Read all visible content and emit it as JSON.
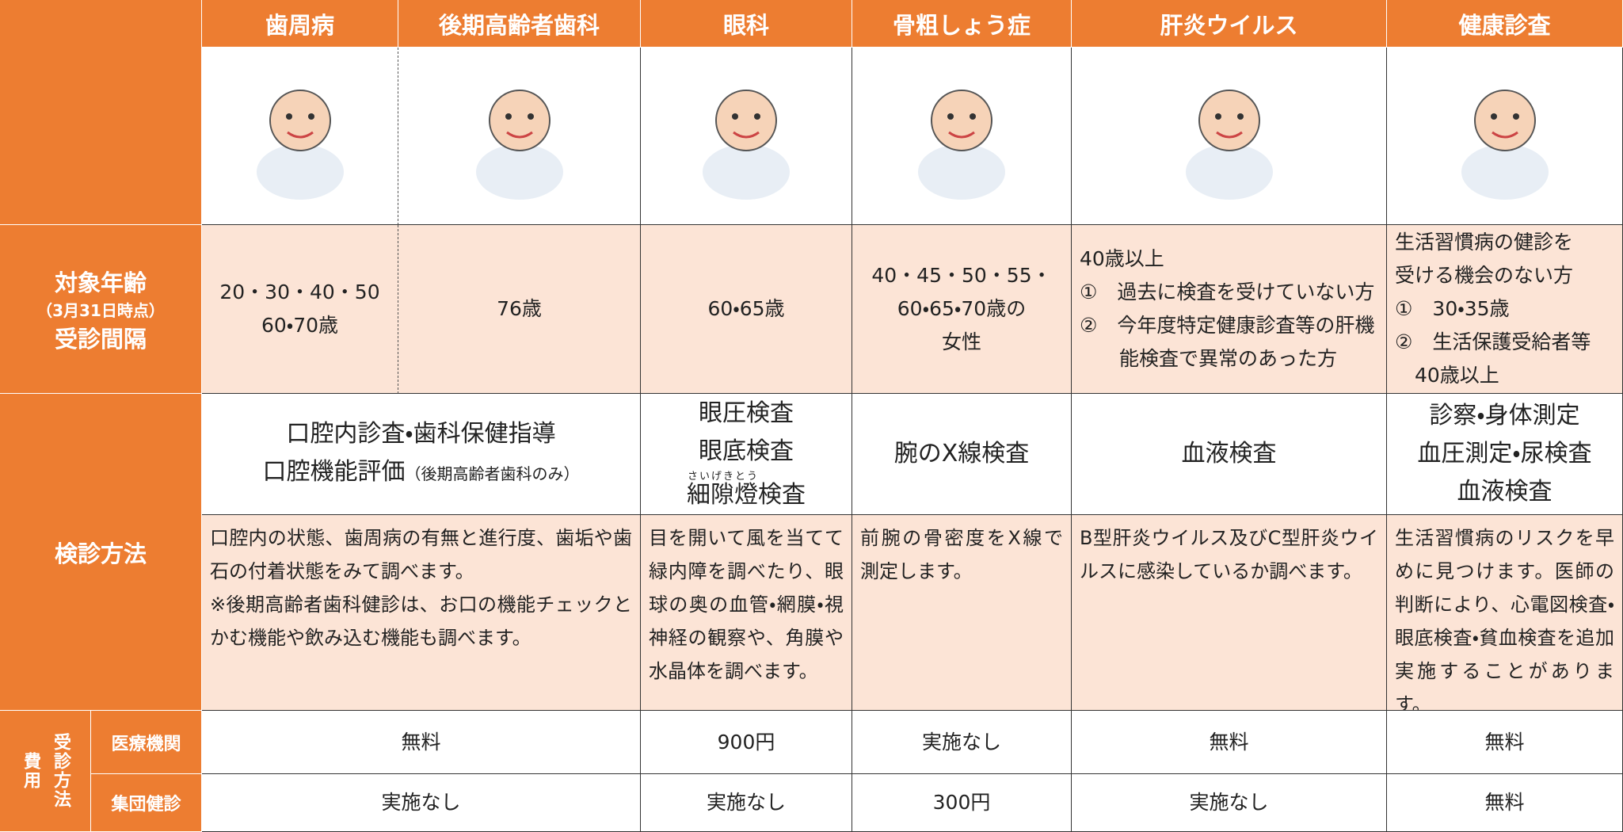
{
  "columns": [
    "歯周病",
    "後期高齢者歯科",
    "眼科",
    "骨粗しょう症",
    "肝炎ウイルス",
    "健康診査"
  ],
  "row_labels": {
    "age": [
      "対象年齢",
      "（3月31日時点）",
      "受診間隔"
    ],
    "method": "検診方法",
    "fee": "費用",
    "venue": "受診方法",
    "fee_rows": [
      "医療機関",
      "集団健診"
    ]
  },
  "age": [
    [
      "20・30・40・50",
      "60・70歳"
    ],
    [
      "76歳"
    ],
    [
      "60・65歳"
    ],
    [
      "40・45・50・55・",
      "60・65・70歳の",
      "女性"
    ],
    [
      "40歳以上",
      "①　過去に検査を受けていない方",
      "②　今年度特定健康診査等の肝機",
      "　　能検査で異常のあった方"
    ],
    [
      "生活習慣病の健診を",
      "受ける機会のない方",
      "①　30・35歳",
      "②　生活保護受給者等",
      "　40歳以上"
    ]
  ],
  "methods": [
    [
      "口腔内診査・歯科保健指導",
      {
        "text": "口腔機能評価",
        "small": "（後期高齢者歯科のみ）"
      }
    ],
    [
      "眼圧検査",
      "眼底検査",
      {
        "ruby_base": "細隙燈",
        "ruby": "さいげきとう",
        "after": "検査"
      }
    ],
    [
      "腕のX線検査"
    ],
    [
      "血液検査"
    ],
    [
      "診察・身体測定",
      "血圧測定・尿検査",
      "血液検査"
    ]
  ],
  "descriptions": [
    [
      "口腔内の状態、歯周病の有無と進行度、歯垢や歯石の付着状態をみて調べます。",
      "※後期高齢者歯科健診は、お口の機能チェックとかむ機能や飲み込む機能も調べます。"
    ],
    [
      "目を開いて風を当てて緑内障を調べたり、眼球の奥の血管・網膜・視神経の観察や、角膜や水晶体を調べます。"
    ],
    [
      "前腕の骨密度をX線で測定します。"
    ],
    [
      "B型肝炎ウイルス及びC型肝炎ウイルスに感染しているか調べます。"
    ],
    [
      "生活習慣病のリスクを早めに見つけます。医師の判断により、心電図検査・眼底検査・貧血検査を追加実施することがあります。"
    ]
  ],
  "fees": [
    [
      "無料",
      "900円",
      "実施なし",
      "無料",
      "無料"
    ],
    [
      "実施なし",
      "実施なし",
      "300円",
      "実施なし",
      "無料"
    ]
  ]
}
